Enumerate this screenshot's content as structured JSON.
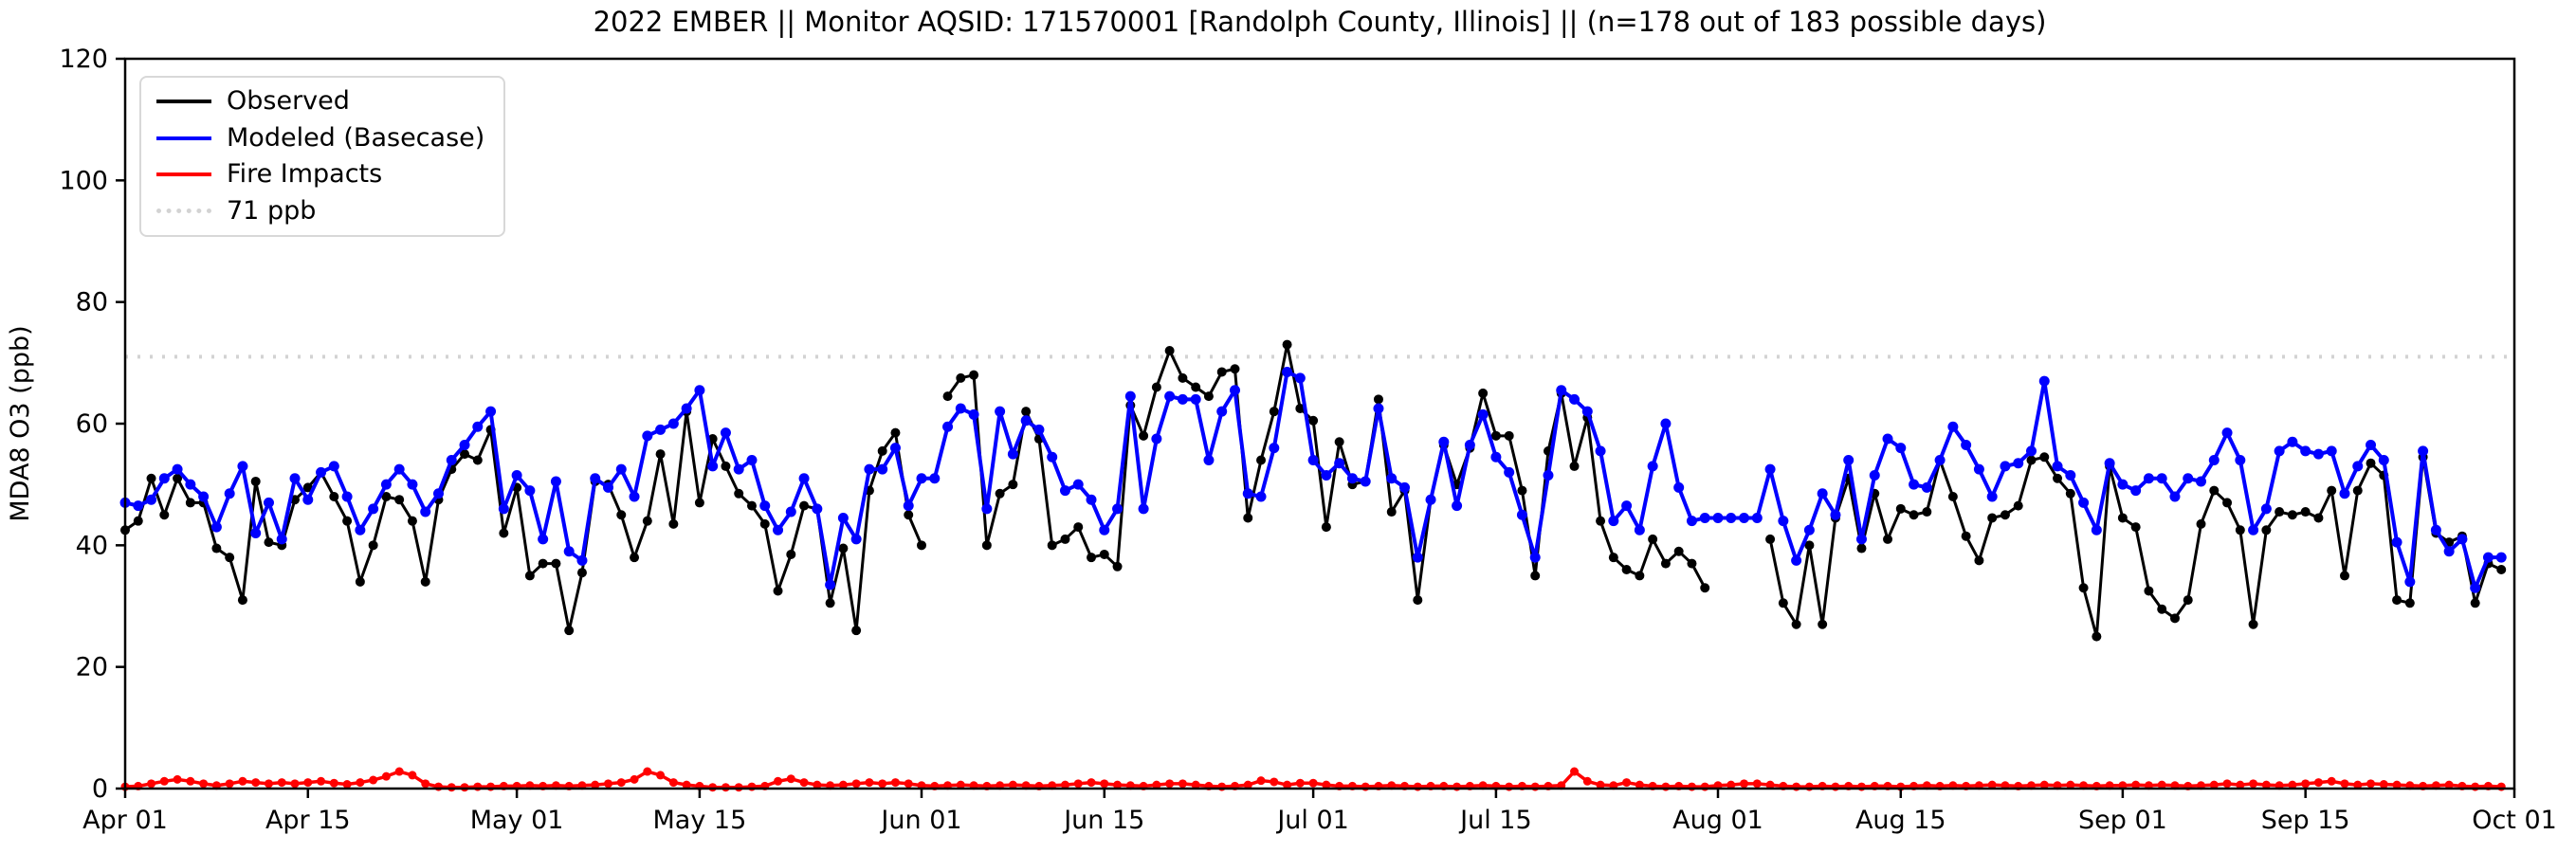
{
  "title": "2022 EMBER || Monitor AQSID: 171570001 [Randolph County, Illinois] || (n=178 out of 183 possible days)",
  "legend": {
    "position": "upper left",
    "items": [
      {
        "label": "Observed",
        "color": "#000000",
        "style": "solid"
      },
      {
        "label": "Modeled (Basecase)",
        "color": "#0000ff",
        "style": "solid"
      },
      {
        "label": "Fire Impacts",
        "color": "#ff0000",
        "style": "solid"
      },
      {
        "label": "71 ppb",
        "color": "#d3d3d3",
        "style": "dotted"
      }
    ]
  },
  "chart_data": {
    "type": "line",
    "title": "2022 EMBER || Monitor AQSID: 171570001 [Randolph County, Illinois] || (n=178 out of 183 possible days)",
    "xlabel": "",
    "ylabel": "MDA8 O3 (ppb)",
    "ylim": [
      0,
      120
    ],
    "y_ticks": [
      0,
      20,
      40,
      60,
      80,
      100,
      120
    ],
    "x_start": "Apr 01",
    "x_end": "Oct 01",
    "x_days_total": 183,
    "x_ticks": [
      {
        "label": "Apr 01",
        "day": 0
      },
      {
        "label": "Apr 15",
        "day": 14
      },
      {
        "label": "May 01",
        "day": 30
      },
      {
        "label": "May 15",
        "day": 44
      },
      {
        "label": "Jun 01",
        "day": 61
      },
      {
        "label": "Jun 15",
        "day": 75
      },
      {
        "label": "Jul 01",
        "day": 91
      },
      {
        "label": "Jul 15",
        "day": 105
      },
      {
        "label": "Aug 01",
        "day": 122
      },
      {
        "label": "Aug 15",
        "day": 136
      },
      {
        "label": "Sep 01",
        "day": 153
      },
      {
        "label": "Sep 15",
        "day": 167
      },
      {
        "label": "Oct 01",
        "day": 183
      }
    ],
    "grid": false,
    "threshold": {
      "label": "71 ppb",
      "value": 71,
      "color": "#d3d3d3",
      "style": "dotted"
    },
    "series": [
      {
        "name": "Observed",
        "color": "#000000",
        "line_width": 3,
        "marker_radius": 5,
        "values": [
          42.5,
          44,
          51,
          45,
          51,
          47,
          47,
          39.5,
          38,
          31,
          50.5,
          40.5,
          40,
          47.5,
          49.5,
          52,
          48,
          44,
          34,
          40,
          48,
          47.5,
          44,
          34,
          47.5,
          52.5,
          55,
          54,
          59,
          42,
          49.5,
          35,
          37,
          37,
          26,
          35.5,
          50.5,
          50,
          45,
          38,
          44,
          55,
          43.5,
          62,
          47,
          57.5,
          53,
          48.5,
          46.5,
          43.5,
          32.5,
          38.5,
          46.5,
          46,
          30.5,
          39.5,
          26,
          49,
          55.5,
          58.5,
          45,
          40,
          null,
          64.5,
          67.5,
          68,
          40,
          48.5,
          50,
          62,
          57.5,
          40,
          41,
          43,
          38,
          38.5,
          36.5,
          63,
          58,
          66,
          72,
          67.5,
          66,
          64.5,
          68.5,
          69,
          44.5,
          54,
          62,
          73,
          62.5,
          60.5,
          43,
          57,
          50,
          50.5,
          64,
          45.5,
          49,
          31,
          47.5,
          56.5,
          50,
          56,
          65,
          58,
          58,
          49,
          35,
          55.5,
          65,
          53,
          61,
          44,
          38,
          36,
          35,
          41,
          37,
          39,
          37,
          33,
          null,
          null,
          null,
          null,
          41,
          30.5,
          27,
          40,
          27,
          44.5,
          51,
          39.5,
          48.5,
          41,
          46,
          45,
          45.5,
          54,
          48,
          41.5,
          37.5,
          44.5,
          45,
          46.5,
          54,
          54.5,
          51,
          48.5,
          33,
          25,
          53,
          44.5,
          43,
          32.5,
          29.5,
          28,
          31,
          43.5,
          49,
          47,
          42.5,
          27,
          42.5,
          45.5,
          45,
          45.5,
          44.5,
          49,
          35,
          49,
          53.5,
          51.5,
          31,
          30.5,
          54.5,
          42,
          40.5,
          41.5,
          30.5,
          37,
          36
        ]
      },
      {
        "name": "Modeled (Basecase)",
        "color": "#0000ff",
        "line_width": 4,
        "marker_radius": 5.5,
        "values": [
          47,
          46.5,
          47.5,
          51,
          52.5,
          50,
          48,
          43,
          48.5,
          53,
          42,
          47,
          41,
          51,
          47.5,
          52,
          53,
          48,
          42.5,
          46,
          50,
          52.5,
          50,
          45.5,
          48.5,
          54,
          56.5,
          59.5,
          62,
          46,
          51.5,
          49,
          41,
          50.5,
          39,
          37.5,
          51,
          49.5,
          52.5,
          48,
          58,
          59,
          60,
          62.5,
          65.5,
          53,
          58.5,
          52.5,
          54,
          46.5,
          42.5,
          45.5,
          51,
          46,
          33.5,
          44.5,
          41,
          52.5,
          52.5,
          56,
          46.5,
          51,
          51,
          59.5,
          62.5,
          61.5,
          46,
          62,
          55,
          60.5,
          59,
          54.5,
          49,
          50,
          47.5,
          42.5,
          46,
          64.5,
          46,
          57.5,
          64.5,
          64,
          64,
          54,
          62,
          65.5,
          48.5,
          48,
          56,
          68.5,
          67.5,
          54,
          51.5,
          53.5,
          51,
          50.5,
          62.5,
          51,
          49.5,
          38,
          47.5,
          57,
          46.5,
          56.5,
          61.5,
          54.5,
          52,
          45,
          38,
          51.5,
          65.5,
          64,
          62,
          55.5,
          44,
          46.5,
          42.5,
          53,
          60,
          49.5,
          44,
          44.5,
          44.5,
          44.5,
          44.5,
          44.5,
          52.5,
          44,
          37.5,
          42.5,
          48.5,
          45,
          54,
          41,
          51.5,
          57.5,
          56,
          50,
          49.5,
          54,
          59.5,
          56.5,
          52.5,
          48,
          53,
          53.5,
          55.5,
          67,
          53,
          51.5,
          47,
          42.5,
          53.5,
          50,
          49,
          51,
          51,
          48,
          51,
          50.5,
          54,
          58.5,
          54,
          42.5,
          46,
          55.5,
          57,
          55.5,
          55,
          55.5,
          48.5,
          53,
          56.5,
          54,
          40.5,
          34,
          55.5,
          42.5,
          39,
          41,
          33,
          38,
          38
        ]
      },
      {
        "name": "Fire Impacts",
        "color": "#ff0000",
        "line_width": 3.5,
        "marker_radius": 4.5,
        "values": [
          0.3,
          0.4,
          0.8,
          1.2,
          1.5,
          1.2,
          0.8,
          0.5,
          0.8,
          1.2,
          1.0,
          0.8,
          1.0,
          0.8,
          1.0,
          1.2,
          0.9,
          0.7,
          1.0,
          1.4,
          2.0,
          2.8,
          2.2,
          0.8,
          0.3,
          0.2,
          0.2,
          0.3,
          0.3,
          0.4,
          0.4,
          0.5,
          0.4,
          0.5,
          0.4,
          0.5,
          0.6,
          0.8,
          1.0,
          1.5,
          2.8,
          2.2,
          1.0,
          0.6,
          0.4,
          0.2,
          0.2,
          0.2,
          0.3,
          0.4,
          1.2,
          1.6,
          1.0,
          0.6,
          0.5,
          0.6,
          0.8,
          1.0,
          0.8,
          1.0,
          0.8,
          0.5,
          0.4,
          0.5,
          0.6,
          0.5,
          0.4,
          0.5,
          0.6,
          0.5,
          0.4,
          0.5,
          0.6,
          0.8,
          1.0,
          0.8,
          0.6,
          0.5,
          0.4,
          0.6,
          0.8,
          0.8,
          0.6,
          0.4,
          0.3,
          0.4,
          0.6,
          1.3,
          1.1,
          0.6,
          0.9,
          0.9,
          0.6,
          0.4,
          0.4,
          0.3,
          0.4,
          0.5,
          0.4,
          0.3,
          0.4,
          0.4,
          0.3,
          0.4,
          0.5,
          0.4,
          0.3,
          0.4,
          0.3,
          0.4,
          0.5,
          2.8,
          1.2,
          0.6,
          0.5,
          1.0,
          0.6,
          0.4,
          0.3,
          0.4,
          0.3,
          0.3,
          0.5,
          0.6,
          0.8,
          0.8,
          0.6,
          0.4,
          0.3,
          0.3,
          0.4,
          0.3,
          0.4,
          0.3,
          0.4,
          0.4,
          0.3,
          0.4,
          0.5,
          0.4,
          0.5,
          0.4,
          0.5,
          0.6,
          0.5,
          0.4,
          0.5,
          0.6,
          0.5,
          0.6,
          0.5,
          0.4,
          0.5,
          0.5,
          0.6,
          0.5,
          0.6,
          0.5,
          0.4,
          0.5,
          0.6,
          0.8,
          0.6,
          0.8,
          0.6,
          0.5,
          0.6,
          0.8,
          1.0,
          1.2,
          0.8,
          0.6,
          0.8,
          0.7,
          0.6,
          0.5,
          0.4,
          0.5,
          0.6,
          0.4,
          0.3,
          0.4,
          0.3
        ]
      }
    ]
  }
}
